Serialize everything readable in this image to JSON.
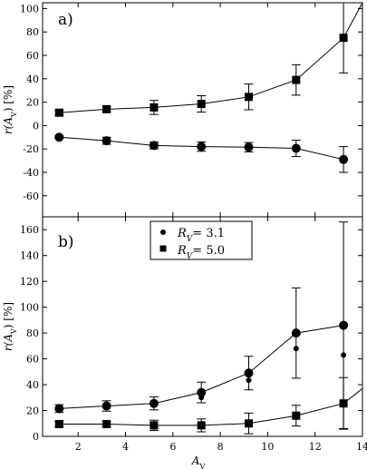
{
  "chart_data": [
    {
      "type": "line",
      "panel_label": "a)",
      "xlabel": "",
      "ylabel": "r(A_V) [%]",
      "xlim": [
        0.5,
        14
      ],
      "ylim": [
        -78,
        105
      ],
      "yticks": [
        -60,
        -40,
        -20,
        0,
        20,
        40,
        60,
        80,
        100
      ],
      "x_tick_labels_shown": false,
      "grid": false,
      "series": [
        {
          "marker": "square",
          "x": [
            1.2,
            3.2,
            5.2,
            7.2,
            9.2,
            11.2,
            13.2
          ],
          "y": [
            11,
            14,
            15.5,
            18.5,
            24.5,
            39,
            75
          ],
          "yerr": [
            2,
            2,
            6,
            7,
            11,
            13,
            30
          ],
          "line_x": [
            1.2,
            3.2,
            5.2,
            7.2,
            9.2,
            11.2,
            13.2,
            14.0
          ],
          "line_y": [
            11,
            14,
            15.5,
            18.5,
            24.5,
            39,
            75,
            105
          ]
        },
        {
          "marker": "circle",
          "x": [
            1.2,
            3.2,
            5.2,
            7.2,
            9.2,
            11.2,
            13.2
          ],
          "y": [
            -10,
            -13,
            -17,
            -18,
            -18.5,
            -19.5,
            -29
          ],
          "yerr": [
            1,
            3,
            3,
            4,
            4,
            7,
            11
          ]
        }
      ]
    },
    {
      "type": "line",
      "panel_label": "b)",
      "xlabel": "A_V",
      "ylabel": "r(A_V) [%]",
      "xlim": [
        0.5,
        14
      ],
      "ylim": [
        0,
        170
      ],
      "xticks": [
        2,
        4,
        6,
        8,
        10,
        12,
        14
      ],
      "yticks": [
        0,
        20,
        40,
        60,
        80,
        100,
        120,
        140,
        160
      ],
      "grid": false,
      "legend": {
        "position": "top-center",
        "entries": [
          {
            "marker": "circle",
            "label_symbol": "R_V",
            "label_value": "= 3.1"
          },
          {
            "marker": "square",
            "label_symbol": "R_V",
            "label_value": "= 5.0"
          }
        ]
      },
      "series": [
        {
          "marker": "circle-large",
          "x": [
            1.2,
            3.2,
            5.2,
            7.2,
            9.2,
            11.2,
            13.2
          ],
          "y": [
            21.5,
            23.5,
            25.5,
            34,
            49,
            80,
            86
          ],
          "yerr": [
            3,
            4,
            5,
            8,
            13,
            35,
            80
          ]
        },
        {
          "marker": "circle-small",
          "x": [
            1.2,
            3.2,
            5.2,
            7.2,
            9.2,
            11.2,
            13.2
          ],
          "y": [
            21.5,
            24,
            24.5,
            30,
            43.5,
            68,
            63
          ]
        },
        {
          "marker": "square",
          "x": [
            1.2,
            3.2,
            5.2,
            7.2,
            9.2,
            11.2,
            13.2
          ],
          "y": [
            9.5,
            9.5,
            8.5,
            8.5,
            10,
            16,
            25.5
          ],
          "yerr": [
            2,
            2,
            4,
            5,
            8,
            8,
            20
          ],
          "line_x": [
            1.2,
            3.2,
            5.2,
            7.2,
            9.2,
            11.2,
            13.2,
            14.0
          ],
          "line_y": [
            9.5,
            9.5,
            8.5,
            8.5,
            10,
            16,
            25.5,
            37
          ]
        }
      ]
    }
  ]
}
